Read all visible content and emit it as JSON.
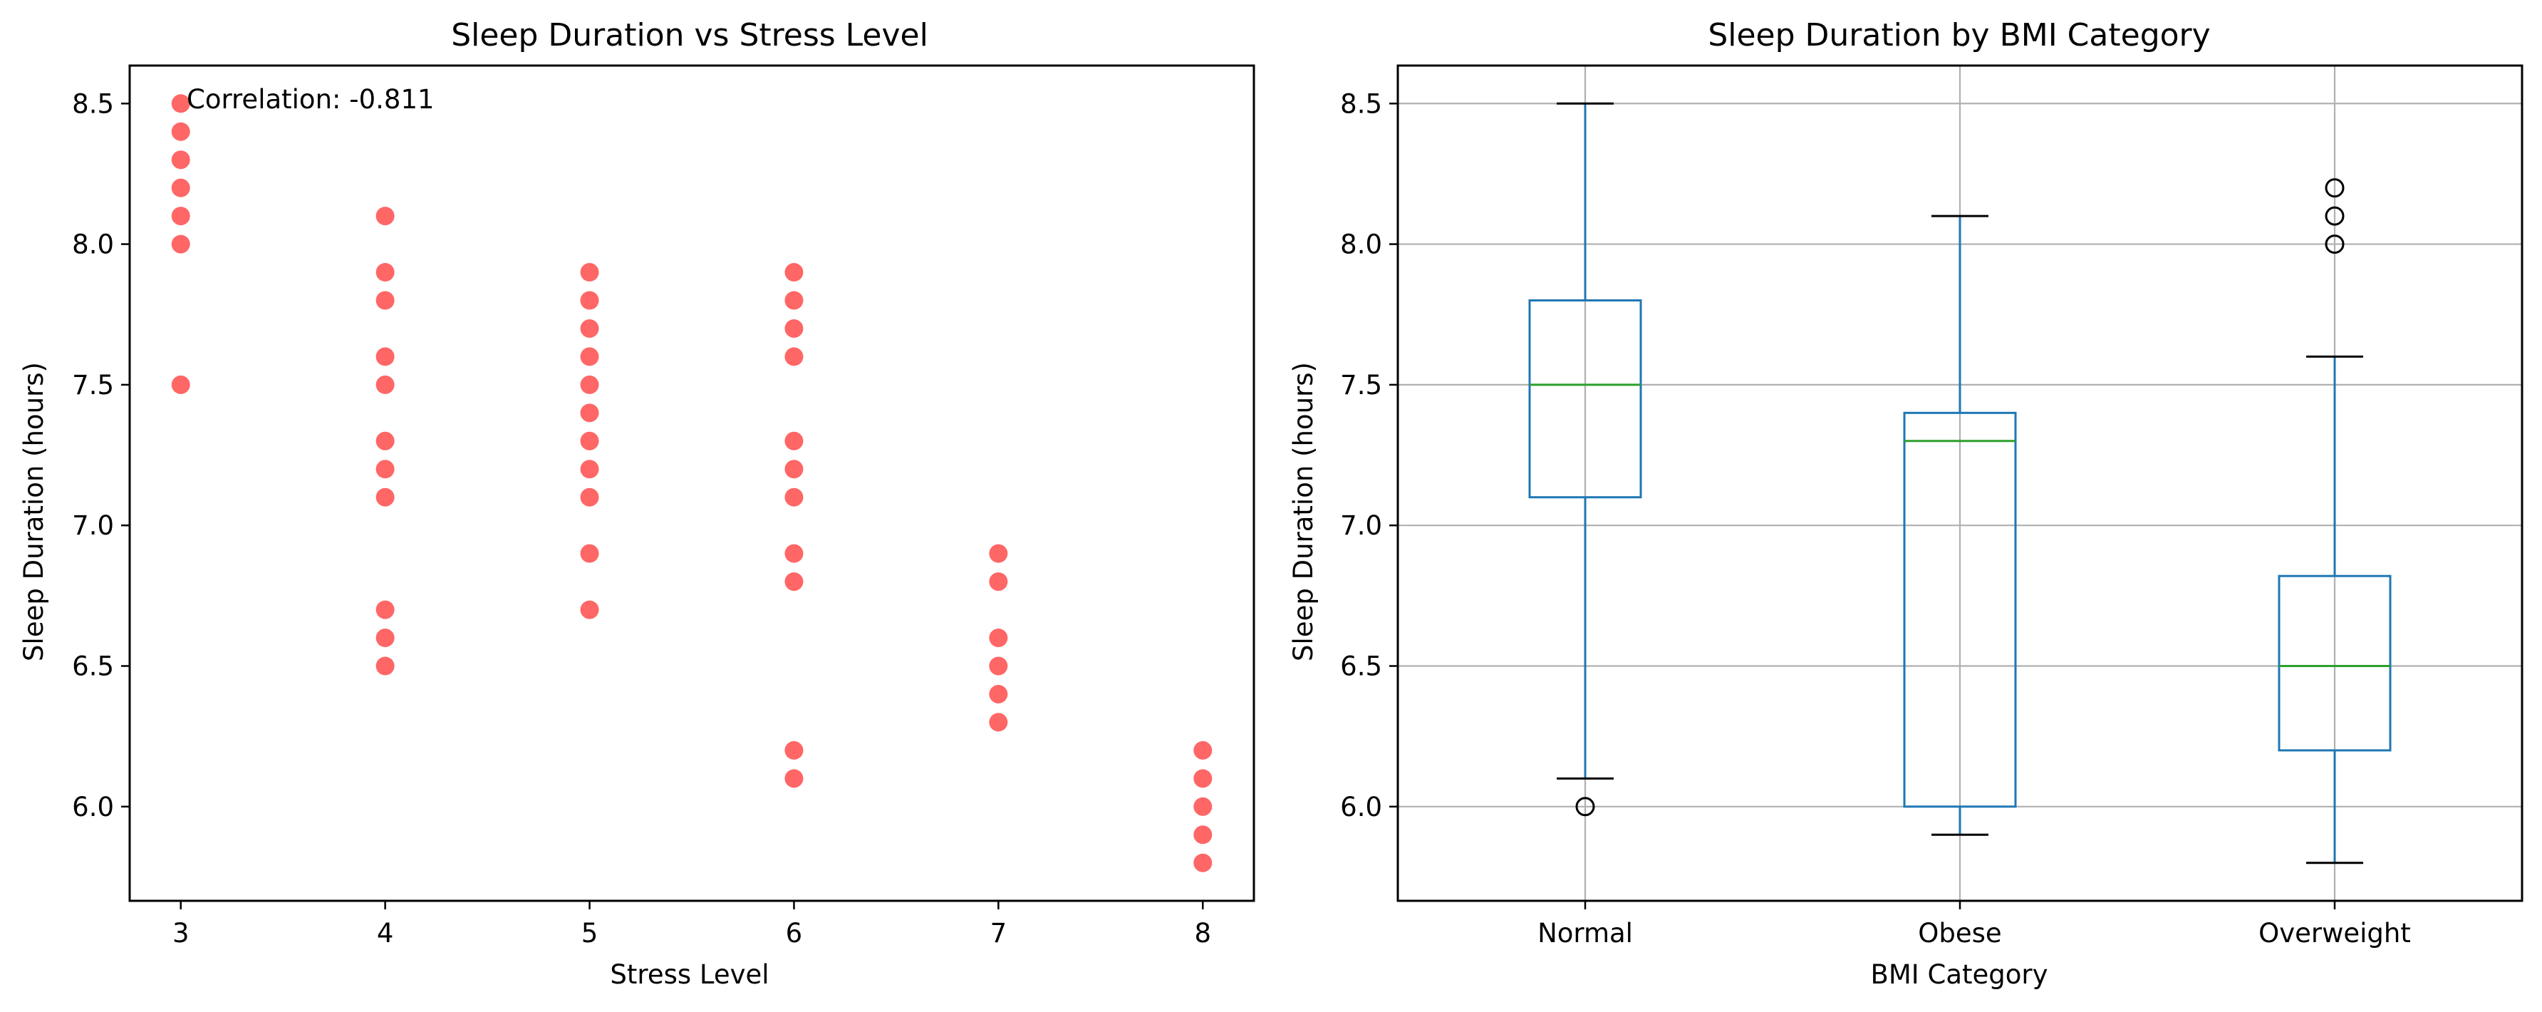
{
  "chart_data": [
    {
      "type": "scatter",
      "title": "Sleep Duration vs Stress Level",
      "xlabel": "Stress Level",
      "ylabel": "Sleep Duration (hours)",
      "xlim": [
        2.75,
        8.25
      ],
      "ylim": [
        5.665,
        8.635
      ],
      "xticks": [
        3,
        4,
        5,
        6,
        7,
        8
      ],
      "yticks": [
        6.0,
        6.5,
        7.0,
        7.5,
        8.0,
        8.5
      ],
      "grid": false,
      "annotation": "Correlation: -0.811",
      "color": "#ff0000",
      "points": [
        {
          "x": 3,
          "y": 8.5
        },
        {
          "x": 3,
          "y": 8.4
        },
        {
          "x": 3,
          "y": 8.3
        },
        {
          "x": 3,
          "y": 8.2
        },
        {
          "x": 3,
          "y": 8.1
        },
        {
          "x": 3,
          "y": 8.0
        },
        {
          "x": 3,
          "y": 7.5
        },
        {
          "x": 4,
          "y": 8.1
        },
        {
          "x": 4,
          "y": 7.9
        },
        {
          "x": 4,
          "y": 7.8
        },
        {
          "x": 4,
          "y": 7.6
        },
        {
          "x": 4,
          "y": 7.5
        },
        {
          "x": 4,
          "y": 7.3
        },
        {
          "x": 4,
          "y": 7.2
        },
        {
          "x": 4,
          "y": 7.1
        },
        {
          "x": 4,
          "y": 6.7
        },
        {
          "x": 4,
          "y": 6.6
        },
        {
          "x": 4,
          "y": 6.5
        },
        {
          "x": 5,
          "y": 7.9
        },
        {
          "x": 5,
          "y": 7.8
        },
        {
          "x": 5,
          "y": 7.7
        },
        {
          "x": 5,
          "y": 7.6
        },
        {
          "x": 5,
          "y": 7.5
        },
        {
          "x": 5,
          "y": 7.4
        },
        {
          "x": 5,
          "y": 7.3
        },
        {
          "x": 5,
          "y": 7.2
        },
        {
          "x": 5,
          "y": 7.1
        },
        {
          "x": 5,
          "y": 6.9
        },
        {
          "x": 5,
          "y": 6.7
        },
        {
          "x": 6,
          "y": 7.9
        },
        {
          "x": 6,
          "y": 7.8
        },
        {
          "x": 6,
          "y": 7.7
        },
        {
          "x": 6,
          "y": 7.6
        },
        {
          "x": 6,
          "y": 7.3
        },
        {
          "x": 6,
          "y": 7.2
        },
        {
          "x": 6,
          "y": 7.1
        },
        {
          "x": 6,
          "y": 6.9
        },
        {
          "x": 6,
          "y": 6.8
        },
        {
          "x": 6,
          "y": 6.2
        },
        {
          "x": 6,
          "y": 6.1
        },
        {
          "x": 7,
          "y": 6.9
        },
        {
          "x": 7,
          "y": 6.8
        },
        {
          "x": 7,
          "y": 6.6
        },
        {
          "x": 7,
          "y": 6.5
        },
        {
          "x": 7,
          "y": 6.4
        },
        {
          "x": 7,
          "y": 6.3
        },
        {
          "x": 8,
          "y": 6.2
        },
        {
          "x": 8,
          "y": 6.1
        },
        {
          "x": 8,
          "y": 6.0
        },
        {
          "x": 8,
          "y": 5.9
        },
        {
          "x": 8,
          "y": 5.8
        }
      ]
    },
    {
      "type": "box",
      "title": "Sleep Duration by BMI Category",
      "xlabel": "BMI Category",
      "ylabel": "Sleep Duration (hours)",
      "ylim": [
        5.665,
        8.635
      ],
      "yticks": [
        6.0,
        6.5,
        7.0,
        7.5,
        8.0,
        8.5
      ],
      "grid": true,
      "colors": {
        "box": "#1f77b4",
        "median": "#2ca02c",
        "flier": "#000000"
      },
      "categories": [
        "Normal",
        "Obese",
        "Overweight"
      ],
      "boxes": [
        {
          "name": "Normal",
          "whislo": 6.1,
          "q1": 7.1,
          "med": 7.5,
          "q3": 7.8,
          "whishi": 8.5,
          "fliers": [
            6.0
          ]
        },
        {
          "name": "Obese",
          "whislo": 5.9,
          "q1": 6.0,
          "med": 7.3,
          "q3": 7.4,
          "whishi": 8.1,
          "fliers": []
        },
        {
          "name": "Overweight",
          "whislo": 5.8,
          "q1": 6.2,
          "med": 6.5,
          "q3": 6.82,
          "whishi": 7.6,
          "fliers": [
            8.0,
            8.1,
            8.2
          ]
        }
      ]
    }
  ]
}
